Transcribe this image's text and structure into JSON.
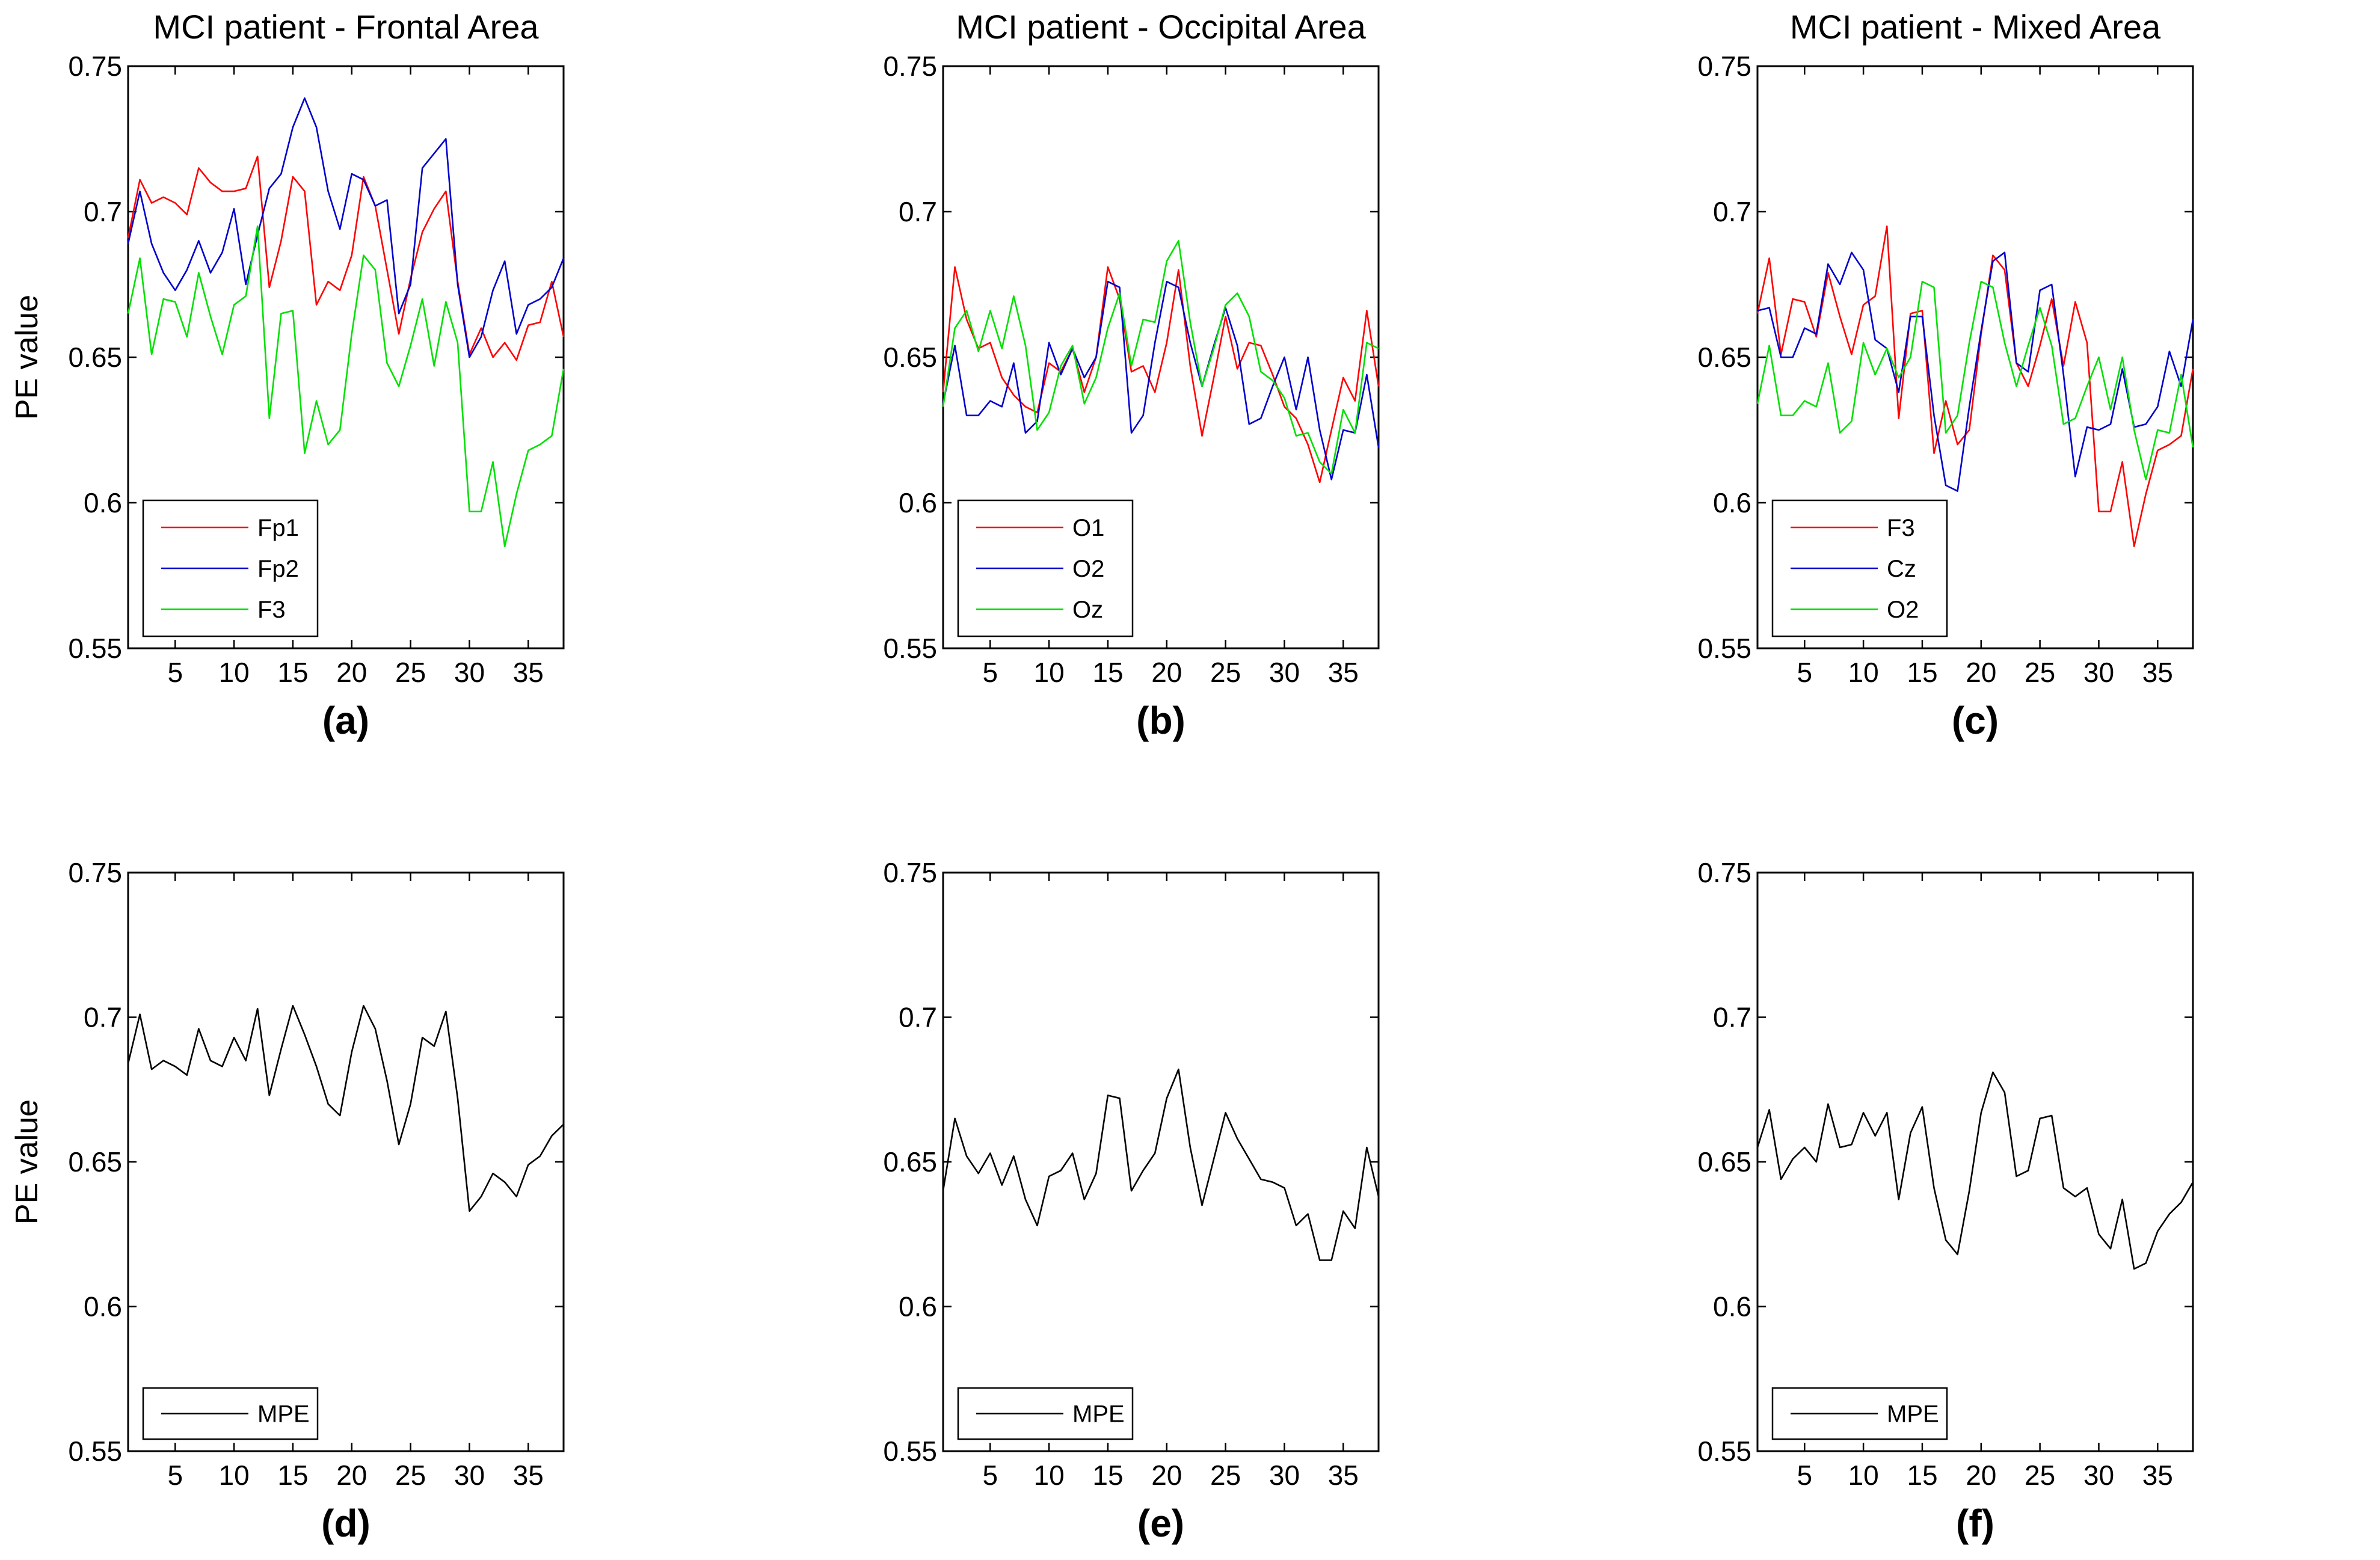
{
  "figure": {
    "colors": {
      "red": "#ff0000",
      "blue": "#0000cc",
      "green": "#00e000",
      "black": "#000000"
    }
  },
  "chart_data": [
    {
      "type": "line",
      "title": "MCI patient - Frontal Area",
      "caption": "(a)",
      "ylabel": "PE value",
      "ylim": [
        0.55,
        0.75
      ],
      "xlim": [
        1,
        38
      ],
      "xticks": [
        "5",
        "10",
        "15",
        "20",
        "25",
        "30",
        "35"
      ],
      "yticks": [
        "0.55",
        "0.6",
        "0.65",
        "0.7",
        "0.75"
      ],
      "legend_position": "bottom-left",
      "series": [
        {
          "name": "Fp1",
          "color": "#ff0000",
          "values": [
            0.691,
            0.711,
            0.703,
            0.705,
            0.703,
            0.699,
            0.715,
            0.71,
            0.707,
            0.707,
            0.708,
            0.719,
            0.674,
            0.69,
            0.712,
            0.707,
            0.668,
            0.676,
            0.673,
            0.685,
            0.712,
            0.702,
            0.68,
            0.658,
            0.677,
            0.693,
            0.701,
            0.707,
            0.676,
            0.651,
            0.66,
            0.65,
            0.655,
            0.649,
            0.661,
            0.662,
            0.676,
            0.657
          ]
        },
        {
          "name": "Fp2",
          "color": "#0000cc",
          "values": [
            0.689,
            0.707,
            0.689,
            0.679,
            0.673,
            0.68,
            0.69,
            0.679,
            0.686,
            0.701,
            0.675,
            0.692,
            0.708,
            0.713,
            0.729,
            0.739,
            0.729,
            0.707,
            0.694,
            0.713,
            0.711,
            0.702,
            0.704,
            0.665,
            0.675,
            0.715,
            0.72,
            0.725,
            0.675,
            0.65,
            0.657,
            0.673,
            0.683,
            0.658,
            0.668,
            0.67,
            0.674,
            0.684
          ]
        },
        {
          "name": "F3",
          "color": "#00e000",
          "values": [
            0.665,
            0.684,
            0.651,
            0.67,
            0.669,
            0.657,
            0.679,
            0.664,
            0.651,
            0.668,
            0.671,
            0.695,
            0.629,
            0.665,
            0.666,
            0.617,
            0.635,
            0.62,
            0.625,
            0.658,
            0.685,
            0.68,
            0.648,
            0.64,
            0.654,
            0.67,
            0.647,
            0.669,
            0.655,
            0.597,
            0.597,
            0.614,
            0.585,
            0.603,
            0.618,
            0.62,
            0.623,
            0.646
          ]
        }
      ]
    },
    {
      "type": "line",
      "title": "MCI patient - Occipital Area",
      "caption": "(b)",
      "ylabel": "",
      "ylim": [
        0.55,
        0.75
      ],
      "xlim": [
        1,
        38
      ],
      "xticks": [
        "5",
        "10",
        "15",
        "20",
        "25",
        "30",
        "35"
      ],
      "yticks": [
        "0.55",
        "0.6",
        "0.65",
        "0.7",
        "0.75"
      ],
      "legend_position": "bottom-left",
      "series": [
        {
          "name": "O1",
          "color": "#ff0000",
          "values": [
            0.638,
            0.681,
            0.663,
            0.653,
            0.655,
            0.643,
            0.637,
            0.633,
            0.631,
            0.648,
            0.645,
            0.653,
            0.638,
            0.65,
            0.681,
            0.67,
            0.645,
            0.647,
            0.638,
            0.655,
            0.68,
            0.647,
            0.623,
            0.643,
            0.664,
            0.646,
            0.655,
            0.654,
            0.644,
            0.633,
            0.629,
            0.62,
            0.607,
            0.625,
            0.643,
            0.635,
            0.666,
            0.64
          ]
        },
        {
          "name": "O2",
          "color": "#0000cc",
          "values": [
            0.634,
            0.654,
            0.63,
            0.63,
            0.635,
            0.633,
            0.648,
            0.624,
            0.628,
            0.655,
            0.644,
            0.653,
            0.643,
            0.65,
            0.676,
            0.674,
            0.624,
            0.63,
            0.655,
            0.676,
            0.674,
            0.655,
            0.64,
            0.654,
            0.667,
            0.654,
            0.627,
            0.629,
            0.64,
            0.65,
            0.632,
            0.65,
            0.625,
            0.608,
            0.625,
            0.624,
            0.644,
            0.619
          ]
        },
        {
          "name": "Oz",
          "color": "#00e000",
          "values": [
            0.633,
            0.66,
            0.666,
            0.652,
            0.666,
            0.653,
            0.671,
            0.654,
            0.625,
            0.631,
            0.647,
            0.654,
            0.634,
            0.643,
            0.66,
            0.672,
            0.647,
            0.663,
            0.662,
            0.683,
            0.69,
            0.662,
            0.64,
            0.653,
            0.668,
            0.672,
            0.664,
            0.645,
            0.642,
            0.636,
            0.623,
            0.624,
            0.614,
            0.61,
            0.632,
            0.624,
            0.655,
            0.653
          ]
        }
      ]
    },
    {
      "type": "line",
      "title": "MCI patient - Mixed Area",
      "caption": "(c)",
      "ylabel": "",
      "ylim": [
        0.55,
        0.75
      ],
      "xlim": [
        1,
        38
      ],
      "xticks": [
        "5",
        "10",
        "15",
        "20",
        "25",
        "30",
        "35"
      ],
      "yticks": [
        "0.55",
        "0.6",
        "0.65",
        "0.7",
        "0.75"
      ],
      "legend_position": "bottom-left",
      "series": [
        {
          "name": "F3",
          "color": "#ff0000",
          "values": [
            0.665,
            0.684,
            0.651,
            0.67,
            0.669,
            0.657,
            0.679,
            0.664,
            0.651,
            0.668,
            0.671,
            0.695,
            0.629,
            0.665,
            0.666,
            0.617,
            0.635,
            0.62,
            0.625,
            0.658,
            0.685,
            0.68,
            0.648,
            0.64,
            0.654,
            0.67,
            0.647,
            0.669,
            0.655,
            0.597,
            0.597,
            0.614,
            0.585,
            0.603,
            0.618,
            0.62,
            0.623,
            0.646
          ]
        },
        {
          "name": "Cz",
          "color": "#0000cc",
          "values": [
            0.666,
            0.667,
            0.65,
            0.65,
            0.66,
            0.658,
            0.682,
            0.675,
            0.686,
            0.68,
            0.656,
            0.653,
            0.638,
            0.664,
            0.664,
            0.63,
            0.606,
            0.604,
            0.633,
            0.659,
            0.683,
            0.686,
            0.648,
            0.645,
            0.673,
            0.675,
            0.644,
            0.609,
            0.626,
            0.625,
            0.627,
            0.646,
            0.626,
            0.627,
            0.633,
            0.652,
            0.64,
            0.663
          ]
        },
        {
          "name": "O2",
          "color": "#00e000",
          "values": [
            0.634,
            0.654,
            0.63,
            0.63,
            0.635,
            0.633,
            0.648,
            0.624,
            0.628,
            0.655,
            0.644,
            0.653,
            0.643,
            0.65,
            0.676,
            0.674,
            0.624,
            0.63,
            0.655,
            0.676,
            0.674,
            0.655,
            0.64,
            0.654,
            0.667,
            0.654,
            0.627,
            0.629,
            0.64,
            0.65,
            0.632,
            0.65,
            0.625,
            0.608,
            0.625,
            0.624,
            0.644,
            0.619
          ]
        }
      ]
    },
    {
      "type": "line",
      "title": "",
      "caption": "(d)",
      "ylabel": "PE value",
      "ylim": [
        0.55,
        0.75
      ],
      "xlim": [
        1,
        38
      ],
      "xticks": [
        "5",
        "10",
        "15",
        "20",
        "25",
        "30",
        "35"
      ],
      "yticks": [
        "0.55",
        "0.6",
        "0.65",
        "0.7",
        "0.75"
      ],
      "legend_position": "bottom-left",
      "series": [
        {
          "name": "MPE",
          "color": "#000000",
          "values": [
            0.684,
            0.701,
            0.682,
            0.685,
            0.683,
            0.68,
            0.696,
            0.685,
            0.683,
            0.693,
            0.685,
            0.703,
            0.673,
            0.689,
            0.704,
            0.694,
            0.683,
            0.67,
            0.666,
            0.688,
            0.704,
            0.696,
            0.678,
            0.656,
            0.67,
            0.693,
            0.69,
            0.702,
            0.672,
            0.633,
            0.638,
            0.646,
            0.643,
            0.638,
            0.649,
            0.652,
            0.659,
            0.663
          ]
        }
      ]
    },
    {
      "type": "line",
      "title": "",
      "caption": "(e)",
      "ylabel": "",
      "ylim": [
        0.55,
        0.75
      ],
      "xlim": [
        1,
        38
      ],
      "xticks": [
        "5",
        "10",
        "15",
        "20",
        "25",
        "30",
        "35"
      ],
      "yticks": [
        "0.55",
        "0.6",
        "0.65",
        "0.7",
        "0.75"
      ],
      "legend_position": "bottom-left",
      "series": [
        {
          "name": "MPE",
          "color": "#000000",
          "values": [
            0.64,
            0.665,
            0.652,
            0.646,
            0.653,
            0.642,
            0.652,
            0.637,
            0.628,
            0.645,
            0.647,
            0.653,
            0.637,
            0.646,
            0.673,
            0.672,
            0.64,
            0.647,
            0.653,
            0.672,
            0.682,
            0.655,
            0.635,
            0.651,
            0.667,
            0.658,
            0.651,
            0.644,
            0.643,
            0.641,
            0.628,
            0.632,
            0.616,
            0.616,
            0.633,
            0.627,
            0.655,
            0.638
          ]
        }
      ]
    },
    {
      "type": "line",
      "title": "",
      "caption": "(f)",
      "ylabel": "",
      "ylim": [
        0.55,
        0.75
      ],
      "xlim": [
        1,
        38
      ],
      "xticks": [
        "5",
        "10",
        "15",
        "20",
        "25",
        "30",
        "35"
      ],
      "yticks": [
        "0.55",
        "0.6",
        "0.65",
        "0.7",
        "0.75"
      ],
      "legend_position": "bottom-left",
      "series": [
        {
          "name": "MPE",
          "color": "#000000",
          "values": [
            0.655,
            0.668,
            0.644,
            0.651,
            0.655,
            0.65,
            0.67,
            0.655,
            0.656,
            0.667,
            0.659,
            0.667,
            0.637,
            0.66,
            0.669,
            0.641,
            0.623,
            0.618,
            0.64,
            0.667,
            0.681,
            0.674,
            0.645,
            0.647,
            0.665,
            0.666,
            0.641,
            0.638,
            0.641,
            0.625,
            0.62,
            0.637,
            0.613,
            0.615,
            0.626,
            0.632,
            0.636,
            0.643
          ]
        }
      ]
    }
  ]
}
